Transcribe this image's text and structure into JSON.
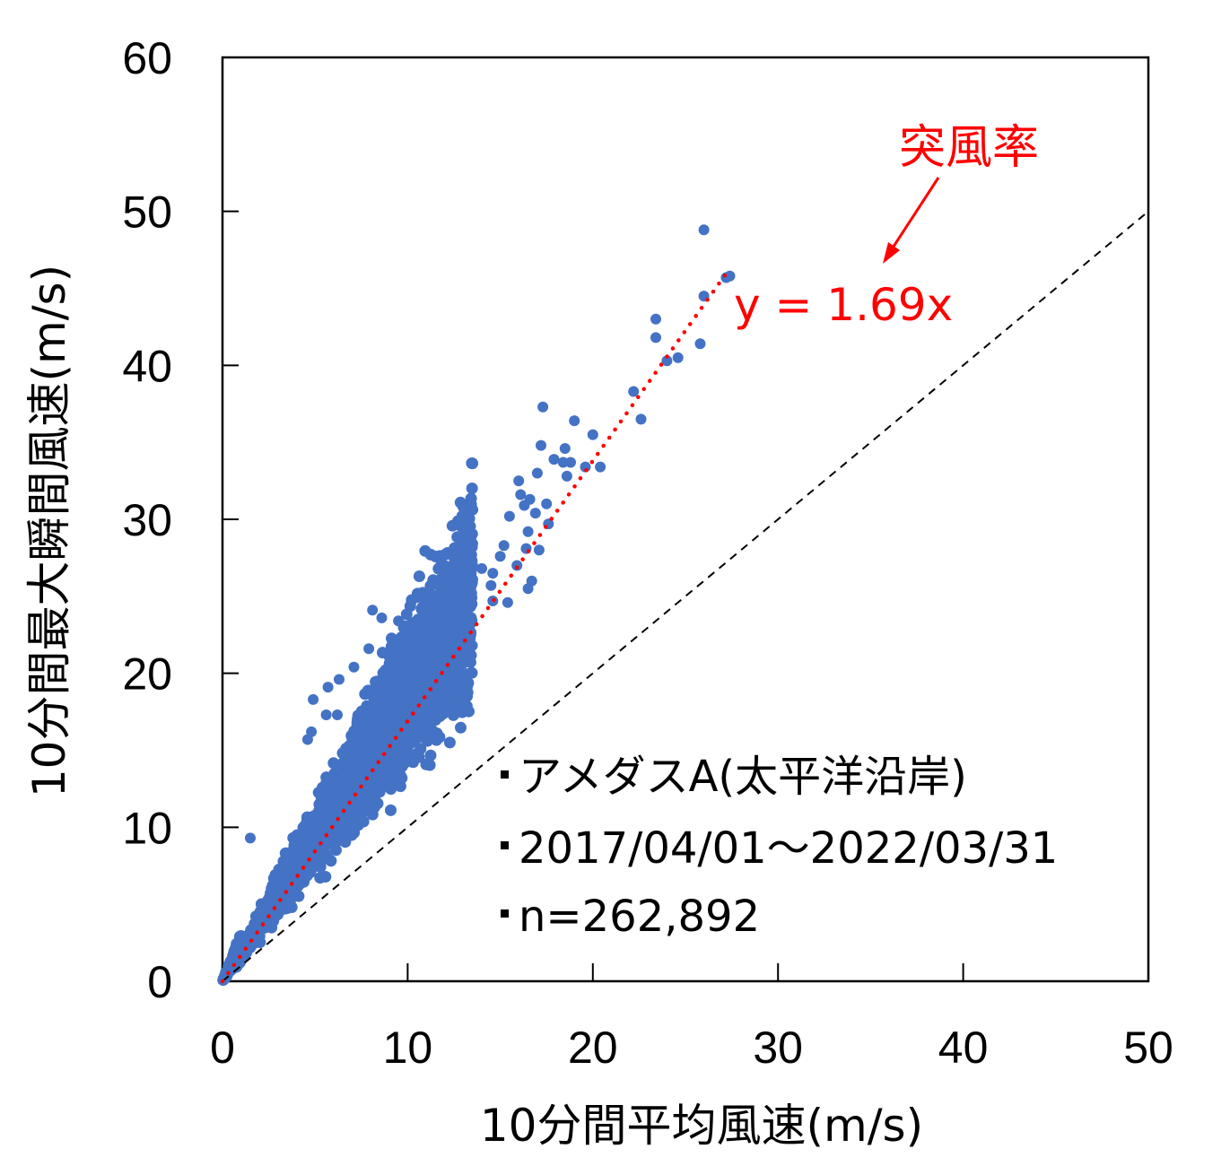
{
  "chart_data": {
    "type": "scatter",
    "xlabel": "10分間平均風速(m/s)",
    "ylabel": "10分間最大瞬間風速(m/s)",
    "xlim": [
      0,
      50
    ],
    "ylim": [
      0,
      60
    ],
    "xticks": [
      "0",
      "10",
      "20",
      "30",
      "40",
      "50"
    ],
    "yticks": [
      "0",
      "10",
      "20",
      "30",
      "40",
      "50",
      "60"
    ],
    "grid": false,
    "series": [
      {
        "color": "#4472c4",
        "marker": "circle",
        "bulk_ratio_range": [
          1.15,
          2.6
        ],
        "points": [
          [
            26.0,
            48.8
          ],
          [
            27.2,
            45.7
          ],
          [
            27.4,
            45.8
          ],
          [
            26.0,
            44.5
          ],
          [
            23.4,
            43.0
          ],
          [
            23.4,
            41.8
          ],
          [
            25.8,
            41.4
          ],
          [
            24.6,
            40.5
          ],
          [
            24.0,
            40.3
          ],
          [
            22.2,
            38.3
          ],
          [
            22.6,
            36.5
          ],
          [
            17.3,
            37.3
          ],
          [
            19.0,
            36.4
          ],
          [
            20.0,
            35.5
          ],
          [
            17.2,
            34.8
          ],
          [
            18.5,
            34.6
          ],
          [
            17.9,
            33.9
          ],
          [
            18.4,
            33.7
          ],
          [
            18.8,
            33.7
          ],
          [
            19.6,
            33.4
          ],
          [
            20.4,
            33.4
          ],
          [
            17.0,
            33.0
          ],
          [
            18.6,
            32.8
          ],
          [
            16.0,
            32.5
          ],
          [
            16.1,
            31.6
          ],
          [
            16.6,
            31.3
          ],
          [
            17.5,
            31.0
          ],
          [
            16.3,
            30.9
          ],
          [
            15.5,
            30.2
          ],
          [
            16.9,
            30.4
          ],
          [
            17.6,
            29.7
          ],
          [
            16.5,
            29.2
          ],
          [
            16.4,
            28.1
          ],
          [
            17.1,
            28.0
          ],
          [
            15.9,
            27.0
          ],
          [
            15.0,
            27.6
          ],
          [
            15.2,
            28.3
          ],
          [
            14.6,
            26.5
          ],
          [
            14.0,
            26.8
          ],
          [
            16.7,
            26.0
          ],
          [
            16.5,
            25.5
          ],
          [
            14.5,
            25.7
          ],
          [
            13.3,
            26.0
          ],
          [
            8.1,
            24.1
          ],
          [
            8.6,
            23.6
          ],
          [
            9.5,
            23.4
          ],
          [
            10.0,
            23.0
          ],
          [
            7.9,
            21.6
          ],
          [
            7.1,
            20.4
          ],
          [
            6.3,
            19.6
          ],
          [
            5.7,
            19.1
          ],
          [
            4.9,
            18.3
          ],
          [
            5.6,
            17.3
          ],
          [
            6.2,
            17.3
          ],
          [
            4.8,
            16.2
          ],
          [
            4.6,
            15.7
          ],
          [
            1.5,
            9.3
          ],
          [
            12.3,
            26.0
          ],
          [
            13.0,
            24.2
          ],
          [
            12.9,
            23.0
          ],
          [
            13.5,
            21.8
          ],
          [
            13.2,
            21.2
          ],
          [
            14.6,
            24.7
          ],
          [
            15.4,
            24.6
          ]
        ]
      }
    ],
    "reference_line": {
      "slope": 1.0,
      "style": "dashed",
      "color": "#000000"
    },
    "trendline": {
      "slope": 1.69,
      "x_range": [
        0,
        27.3
      ],
      "style": "dotted",
      "color": "#ff0000"
    },
    "annotations": {
      "equation": "y = 1.69x",
      "label": "突風率",
      "color": "#ff0000"
    },
    "info_lines": [
      "アメダスA(太平洋沿岸)",
      "2017/04/01〜2022/03/31",
      "n=262,892"
    ]
  }
}
